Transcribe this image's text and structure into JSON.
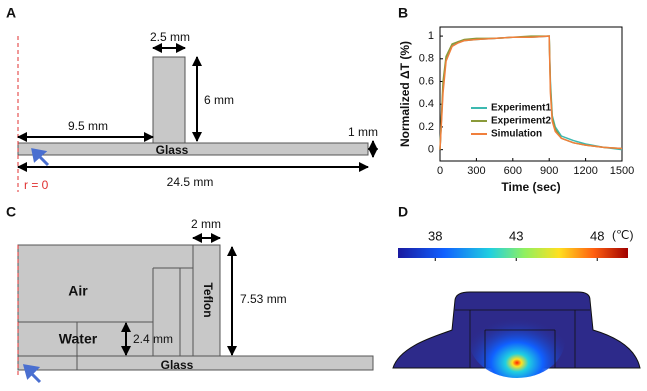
{
  "panel_a": {
    "label": "A",
    "width_label": "2.5 mm",
    "height_label": "6 mm",
    "offset_label": "9.5 mm",
    "thickness_label": "1 mm",
    "material": "Glass",
    "length_label": "24.5 mm",
    "origin_label": "r = 0"
  },
  "chart_data": {
    "type": "line",
    "label": "B",
    "xlabel": "Time (sec)",
    "ylabel": "Normalized ΔT (%)",
    "x": [
      0,
      25,
      50,
      100,
      150,
      200,
      300,
      450,
      600,
      750,
      900,
      910,
      925,
      950,
      1000,
      1100,
      1200,
      1350,
      1500
    ],
    "series": [
      {
        "name": "Experiment1",
        "color": "#3cb9b0",
        "values": [
          0,
          0.55,
          0.8,
          0.92,
          0.95,
          0.96,
          0.97,
          0.98,
          0.99,
          0.99,
          1.0,
          0.6,
          0.3,
          0.2,
          0.12,
          0.08,
          0.05,
          0.02,
          0.0
        ]
      },
      {
        "name": "Experiment2",
        "color": "#8a9a3a",
        "values": [
          0,
          0.6,
          0.82,
          0.93,
          0.95,
          0.97,
          0.98,
          0.98,
          0.99,
          1.0,
          1.0,
          0.55,
          0.28,
          0.18,
          0.1,
          0.06,
          0.04,
          0.02,
          0.01
        ]
      },
      {
        "name": "Simulation",
        "color": "#f07f3c",
        "values": [
          0,
          0.5,
          0.78,
          0.91,
          0.94,
          0.96,
          0.97,
          0.98,
          0.99,
          0.99,
          1.0,
          0.5,
          0.25,
          0.16,
          0.1,
          0.06,
          0.04,
          0.02,
          0.01
        ]
      }
    ],
    "xlim": [
      0,
      1500
    ],
    "xticks": [
      0,
      300,
      600,
      900,
      1200,
      1500
    ],
    "ylim": [
      -0.1,
      1.08
    ],
    "yticks": [
      0,
      0.2,
      0.4,
      0.6,
      0.8,
      1
    ],
    "legend": "center"
  },
  "panel_c": {
    "label": "C",
    "teflon_width_label": "2 mm",
    "height_label": "7.53 mm",
    "air": "Air",
    "water": "Water",
    "water_height_label": "2.4 mm",
    "teflon": "Teflon",
    "material": "Glass"
  },
  "panel_d": {
    "label": "D",
    "colorbar_ticks": [
      38,
      43,
      48
    ],
    "clim": [
      35.7,
      49.9
    ],
    "unit": "(℃)"
  }
}
